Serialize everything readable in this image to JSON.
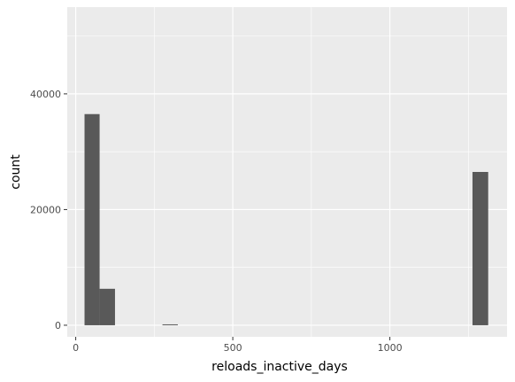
{
  "chart_data": {
    "type": "bar",
    "xlabel": "reloads_inactive_days",
    "ylabel": "count",
    "xlim": [
      -27,
      1373
    ],
    "ylim": [
      -2000,
      55000
    ],
    "x_ticks": [
      0,
      500,
      1000
    ],
    "x_tick_labels": [
      "0",
      "500",
      "1000"
    ],
    "y_ticks": [
      0,
      20000,
      40000
    ],
    "y_tick_labels": [
      "0",
      "20000",
      "40000"
    ],
    "grid": true,
    "bar_color": "#595959",
    "panel_color": "#ebebeb",
    "bins": [
      {
        "x0": 28,
        "x1": 76,
        "count": 36500
      },
      {
        "x0": 76,
        "x1": 125,
        "count": 6300
      },
      {
        "x0": 276,
        "x1": 325,
        "count": 150
      },
      {
        "x0": 1263,
        "x1": 1313,
        "count": 26500
      }
    ]
  }
}
